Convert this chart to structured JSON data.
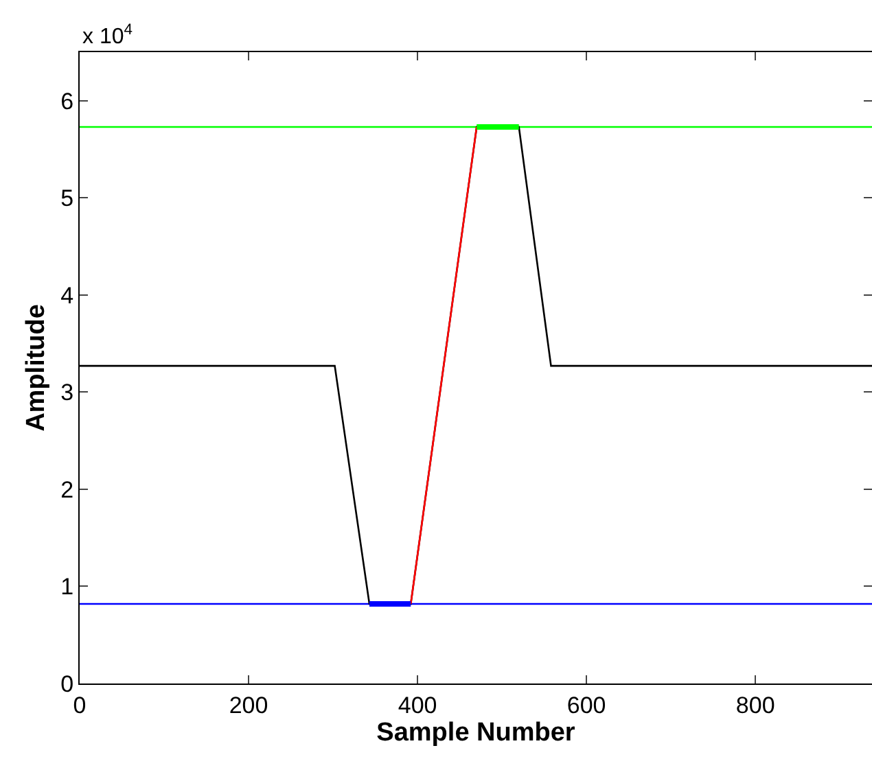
{
  "chart_data": {
    "type": "line",
    "xlabel": "Sample Number",
    "ylabel": "Amplitude",
    "annotations": [
      "x 10$^{4}$"
    ],
    "xlim": [
      0,
      938
    ],
    "xticks": [
      0,
      200,
      400,
      600,
      800
    ],
    "ylim": [
      0,
      6.5
    ],
    "yticks": [
      0,
      1,
      2,
      3,
      4,
      5,
      6
    ],
    "grid": false,
    "marker": "none",
    "line_style": "solid",
    "series": [
      {
        "color": "#0000ff",
        "x": [
          0,
          938
        ],
        "values": [
          0.82,
          0.82
        ]
      },
      {
        "color": "#00ff00",
        "x": [
          0,
          938
        ],
        "values": [
          5.73,
          5.73
        ]
      },
      {
        "color": "#000000",
        "x": [
          0,
          302,
          343,
          392,
          470,
          520,
          558,
          938
        ],
        "values": [
          3.27,
          3.27,
          0.82,
          0.82,
          5.73,
          5.73,
          3.27,
          3.27
        ]
      },
      {
        "color": "#ff0000",
        "x": [
          392,
          470
        ],
        "values": [
          0.82,
          5.73
        ]
      },
      {
        "color": "#0000ff",
        "x": [
          343,
          392
        ],
        "values": [
          0.82,
          0.82
        ]
      },
      {
        "color": "#00ff00",
        "x": [
          470,
          520
        ],
        "values": [
          5.73,
          5.73
        ]
      }
    ]
  }
}
